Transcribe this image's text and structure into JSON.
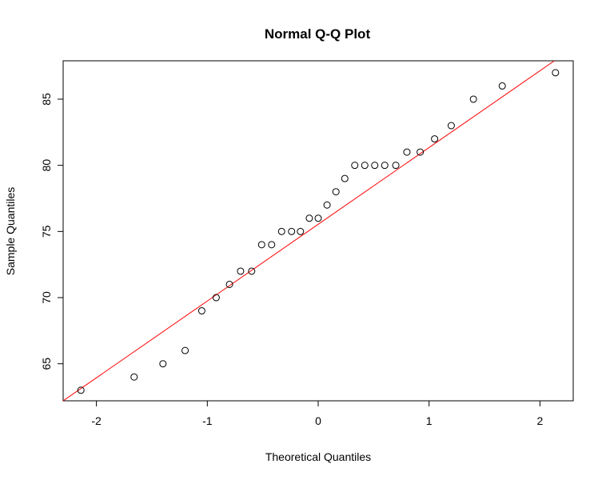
{
  "chart_data": {
    "type": "scatter",
    "title": "Normal Q-Q Plot",
    "xlabel": "Theoretical Quantiles",
    "ylabel": "Sample Quantiles",
    "xlim": [
      -2.3,
      2.3
    ],
    "ylim": [
      62.2,
      87.9
    ],
    "x_ticks": [
      -2,
      -1,
      0,
      1,
      2
    ],
    "y_ticks": [
      65,
      70,
      75,
      80,
      85
    ],
    "x_tick_labels": [
      "-2",
      "-1",
      "0",
      "1",
      "2"
    ],
    "y_tick_labels": [
      "65",
      "70",
      "75",
      "80",
      "85"
    ],
    "grid": false,
    "reference_line": {
      "color": "#ff0000",
      "points": [
        [
          -2.3,
          62.2
        ],
        [
          2.13,
          87.9
        ]
      ]
    },
    "point_color": "#000000",
    "points": [
      {
        "x": -2.14,
        "y": 63
      },
      {
        "x": -1.66,
        "y": 64
      },
      {
        "x": -1.4,
        "y": 65
      },
      {
        "x": -1.2,
        "y": 66
      },
      {
        "x": -1.05,
        "y": 69
      },
      {
        "x": -0.92,
        "y": 70
      },
      {
        "x": -0.8,
        "y": 71
      },
      {
        "x": -0.7,
        "y": 72
      },
      {
        "x": -0.6,
        "y": 72
      },
      {
        "x": -0.51,
        "y": 74
      },
      {
        "x": -0.42,
        "y": 74
      },
      {
        "x": -0.33,
        "y": 75
      },
      {
        "x": -0.24,
        "y": 75
      },
      {
        "x": -0.16,
        "y": 75
      },
      {
        "x": -0.08,
        "y": 76
      },
      {
        "x": 0.0,
        "y": 76
      },
      {
        "x": 0.08,
        "y": 77
      },
      {
        "x": 0.16,
        "y": 78
      },
      {
        "x": 0.24,
        "y": 79
      },
      {
        "x": 0.33,
        "y": 80
      },
      {
        "x": 0.42,
        "y": 80
      },
      {
        "x": 0.51,
        "y": 80
      },
      {
        "x": 0.6,
        "y": 80
      },
      {
        "x": 0.7,
        "y": 80
      },
      {
        "x": 0.8,
        "y": 81
      },
      {
        "x": 0.92,
        "y": 81
      },
      {
        "x": 1.05,
        "y": 82
      },
      {
        "x": 1.2,
        "y": 83
      },
      {
        "x": 1.4,
        "y": 85
      },
      {
        "x": 1.66,
        "y": 86
      },
      {
        "x": 2.14,
        "y": 87
      }
    ]
  }
}
